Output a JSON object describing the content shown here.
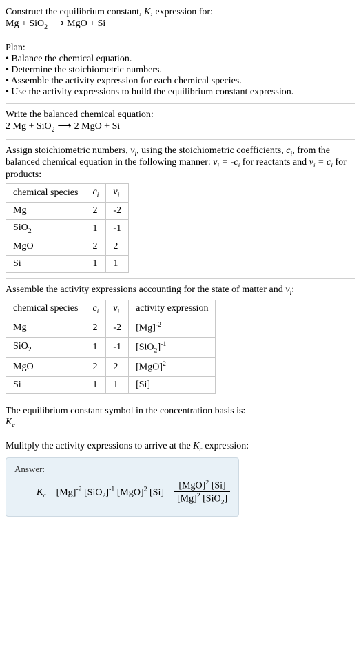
{
  "header": {
    "line1_pre": "Construct the equilibrium constant, ",
    "line1_sym": "K",
    "line1_post": ", expression for:"
  },
  "plan": {
    "title": "Plan:",
    "items": [
      "Balance the chemical equation.",
      "Determine the stoichiometric numbers.",
      "Assemble the activity expression for each chemical species.",
      "Use the activity expressions to build the equilibrium constant expression."
    ]
  },
  "balanced_title": "Write the balanced chemical equation:",
  "stoich": {
    "text_a": "Assign stoichiometric numbers, ",
    "text_b": ", using the stoichiometric coefficients, ",
    "text_c": ", from the balanced chemical equation in the following manner: ",
    "text_d": " for reactants and ",
    "text_e": " for products:"
  },
  "table1": {
    "headers": {
      "species": "chemical species"
    },
    "rows": [
      {
        "species": "Mg",
        "c": "2",
        "v": "-2"
      },
      {
        "species_html": "SiO<sub>2</sub>",
        "c": "1",
        "v": "-1"
      },
      {
        "species": "MgO",
        "c": "2",
        "v": "2"
      },
      {
        "species": "Si",
        "c": "1",
        "v": "1"
      }
    ]
  },
  "activity_title_a": "Assemble the activity expressions accounting for the state of matter and ",
  "activity_title_b": ":",
  "table2": {
    "headers": {
      "species": "chemical species",
      "activity": "activity expression"
    }
  },
  "conc_basis_a": "The equilibrium constant symbol in the concentration basis is:",
  "multiply_a": "Mulitply the activity expressions to arrive at the ",
  "multiply_b": " expression:",
  "answer_label": "Answer:",
  "colors": {
    "divider": "#d0d0d0",
    "table_border": "#c8c8c8",
    "answer_bg": "#e8f1f7",
    "answer_border": "#cdd9e2"
  }
}
